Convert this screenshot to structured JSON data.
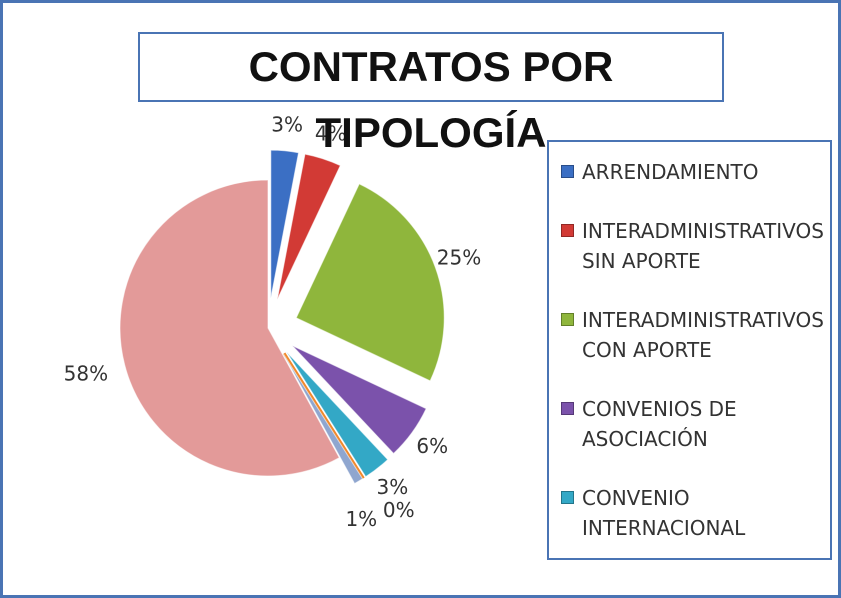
{
  "chart_data": {
    "type": "pie",
    "title": "CONTRATOS POR TIPOLOGÍA",
    "categories": [
      "ARRENDAMIENTO",
      "INTERADMINISTRATIVOS SIN APORTE",
      "INTERADMINISTRATIVOS CON APORTE",
      "CONVENIOS DE ASOCIACIÓN",
      "CONVENIO INTERNACIONAL",
      null,
      null,
      null
    ],
    "values": [
      3,
      4,
      25,
      6,
      3,
      0,
      1,
      58
    ],
    "value_labels": [
      "3%",
      "4%",
      "25%",
      "6%",
      "3%",
      "0%",
      "1%",
      "58%"
    ],
    "colors": [
      "#3b6fc4",
      "#d23a35",
      "#8fb63c",
      "#7b52ab",
      "#33a8c6",
      "#f0892c",
      "#8fa6cf",
      "#e39a99"
    ],
    "legend": "right"
  }
}
